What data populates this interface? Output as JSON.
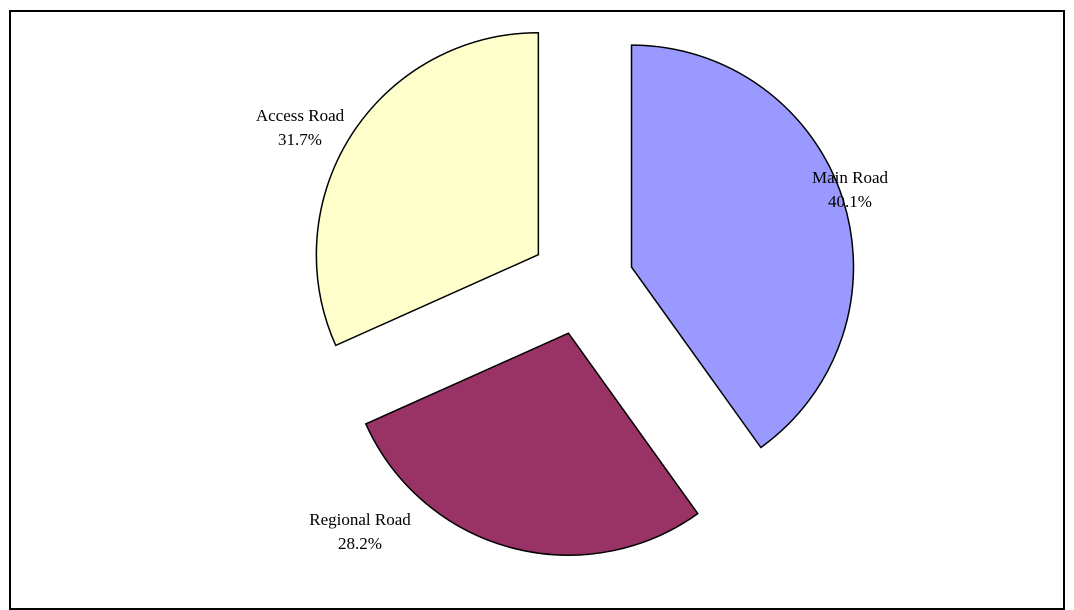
{
  "chart_data": {
    "type": "pie",
    "exploded": true,
    "slices": [
      {
        "label": "Main Road",
        "percent_label": "40.1%",
        "value": 40.1,
        "color": "#9999ff"
      },
      {
        "label": "Regional Road",
        "percent_label": "28.2%",
        "value": 28.2,
        "color": "#993366"
      },
      {
        "label": "Access Road",
        "percent_label": "31.7%",
        "value": 31.7,
        "color": "#ffffcc"
      }
    ],
    "legend": "none",
    "border": true
  }
}
